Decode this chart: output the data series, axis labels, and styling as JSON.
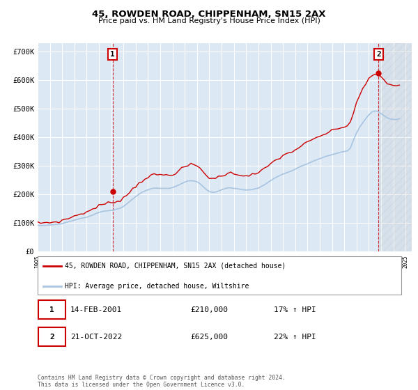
{
  "title": "45, ROWDEN ROAD, CHIPPENHAM, SN15 2AX",
  "subtitle": "Price paid vs. HM Land Registry's House Price Index (HPI)",
  "ylim": [
    0,
    730000
  ],
  "yticks": [
    0,
    100000,
    200000,
    300000,
    400000,
    500000,
    600000,
    700000
  ],
  "ytick_labels": [
    "£0",
    "£100K",
    "£200K",
    "£300K",
    "£400K",
    "£500K",
    "£600K",
    "£700K"
  ],
  "xlim_start": 1995.0,
  "xlim_end": 2025.5,
  "xticks": [
    1995,
    1996,
    1997,
    1998,
    1999,
    2000,
    2001,
    2002,
    2003,
    2004,
    2005,
    2006,
    2007,
    2008,
    2009,
    2010,
    2011,
    2012,
    2013,
    2014,
    2015,
    2016,
    2017,
    2018,
    2019,
    2020,
    2021,
    2022,
    2023,
    2024,
    2025
  ],
  "plot_bg": "#dce9f5",
  "grid_color": "#ffffff",
  "hpi_line_color": "#a8c4e0",
  "price_line_color": "#cc0000",
  "sale1_x": 2001.12,
  "sale1_y": 210000,
  "sale2_x": 2022.8,
  "sale2_y": 625000,
  "legend_label1": "45, ROWDEN ROAD, CHIPPENHAM, SN15 2AX (detached house)",
  "legend_label2": "HPI: Average price, detached house, Wiltshire",
  "table_row1": [
    "1",
    "14-FEB-2001",
    "£210,000",
    "17% ↑ HPI"
  ],
  "table_row2": [
    "2",
    "21-OCT-2022",
    "£625,000",
    "22% ↑ HPI"
  ],
  "footnote": "Contains HM Land Registry data © Crown copyright and database right 2024.\nThis data is licensed under the Open Government Licence v3.0.",
  "hpi_data_x": [
    1995.0,
    1995.25,
    1995.5,
    1995.75,
    1996.0,
    1996.25,
    1996.5,
    1996.75,
    1997.0,
    1997.25,
    1997.5,
    1997.75,
    1998.0,
    1998.25,
    1998.5,
    1998.75,
    1999.0,
    1999.25,
    1999.5,
    1999.75,
    2000.0,
    2000.25,
    2000.5,
    2000.75,
    2001.0,
    2001.25,
    2001.5,
    2001.75,
    2002.0,
    2002.25,
    2002.5,
    2002.75,
    2003.0,
    2003.25,
    2003.5,
    2003.75,
    2004.0,
    2004.25,
    2004.5,
    2004.75,
    2005.0,
    2005.25,
    2005.5,
    2005.75,
    2006.0,
    2006.25,
    2006.5,
    2006.75,
    2007.0,
    2007.25,
    2007.5,
    2007.75,
    2008.0,
    2008.25,
    2008.5,
    2008.75,
    2009.0,
    2009.25,
    2009.5,
    2009.75,
    2010.0,
    2010.25,
    2010.5,
    2010.75,
    2011.0,
    2011.25,
    2011.5,
    2011.75,
    2012.0,
    2012.25,
    2012.5,
    2012.75,
    2013.0,
    2013.25,
    2013.5,
    2013.75,
    2014.0,
    2014.25,
    2014.5,
    2014.75,
    2015.0,
    2015.25,
    2015.5,
    2015.75,
    2016.0,
    2016.25,
    2016.5,
    2016.75,
    2017.0,
    2017.25,
    2017.5,
    2017.75,
    2018.0,
    2018.25,
    2018.5,
    2018.75,
    2019.0,
    2019.25,
    2019.5,
    2019.75,
    2020.0,
    2020.25,
    2020.5,
    2020.75,
    2021.0,
    2021.25,
    2021.5,
    2021.75,
    2022.0,
    2022.25,
    2022.5,
    2022.75,
    2023.0,
    2023.25,
    2023.5,
    2023.75,
    2024.0,
    2024.25,
    2024.5
  ],
  "hpi_data_y": [
    92000,
    91000,
    91500,
    92000,
    93000,
    94000,
    95000,
    96000,
    98000,
    101000,
    104000,
    107000,
    110000,
    113000,
    116000,
    118000,
    120000,
    124000,
    128000,
    133000,
    137000,
    140000,
    142000,
    143000,
    144000,
    146000,
    149000,
    152000,
    158000,
    166000,
    175000,
    184000,
    192000,
    200000,
    207000,
    212000,
    216000,
    220000,
    222000,
    222000,
    221000,
    221000,
    221000,
    221000,
    224000,
    228000,
    233000,
    238000,
    243000,
    247000,
    248000,
    247000,
    244000,
    237000,
    227000,
    217000,
    210000,
    207000,
    208000,
    212000,
    216000,
    220000,
    223000,
    223000,
    221000,
    220000,
    218000,
    216000,
    215000,
    216000,
    217000,
    220000,
    222000,
    228000,
    234000,
    241000,
    248000,
    255000,
    261000,
    266000,
    271000,
    275000,
    279000,
    283000,
    288000,
    294000,
    299000,
    303000,
    307000,
    312000,
    317000,
    321000,
    325000,
    329000,
    333000,
    336000,
    339000,
    342000,
    345000,
    348000,
    350000,
    352000,
    362000,
    390000,
    415000,
    435000,
    450000,
    465000,
    478000,
    488000,
    492000,
    490000,
    483000,
    475000,
    468000,
    464000,
    462000,
    462000,
    465000
  ],
  "price_data_x": [
    1995.0,
    1995.25,
    1995.5,
    1995.75,
    1996.0,
    1996.25,
    1996.5,
    1996.75,
    1997.0,
    1997.25,
    1997.5,
    1997.75,
    1998.0,
    1998.25,
    1998.5,
    1998.75,
    1999.0,
    1999.25,
    1999.5,
    1999.75,
    2000.0,
    2000.25,
    2000.5,
    2000.75,
    2001.0,
    2001.25,
    2001.5,
    2001.75,
    2002.0,
    2002.25,
    2002.5,
    2002.75,
    2003.0,
    2003.25,
    2003.5,
    2003.75,
    2004.0,
    2004.25,
    2004.5,
    2004.75,
    2005.0,
    2005.25,
    2005.5,
    2005.75,
    2006.0,
    2006.25,
    2006.5,
    2006.75,
    2007.0,
    2007.25,
    2007.5,
    2007.75,
    2008.0,
    2008.25,
    2008.5,
    2008.75,
    2009.0,
    2009.25,
    2009.5,
    2009.75,
    2010.0,
    2010.25,
    2010.5,
    2010.75,
    2011.0,
    2011.25,
    2011.5,
    2011.75,
    2012.0,
    2012.25,
    2012.5,
    2012.75,
    2013.0,
    2013.25,
    2013.5,
    2013.75,
    2014.0,
    2014.25,
    2014.5,
    2014.75,
    2015.0,
    2015.25,
    2015.5,
    2015.75,
    2016.0,
    2016.25,
    2016.5,
    2016.75,
    2017.0,
    2017.25,
    2017.5,
    2017.75,
    2018.0,
    2018.25,
    2018.5,
    2018.75,
    2019.0,
    2019.25,
    2019.5,
    2019.75,
    2020.0,
    2020.25,
    2020.5,
    2020.75,
    2021.0,
    2021.25,
    2021.5,
    2021.75,
    2022.0,
    2022.25,
    2022.5,
    2022.75,
    2023.0,
    2023.25,
    2023.5,
    2023.75,
    2024.0,
    2024.25,
    2024.5
  ],
  "price_data_y": [
    100000,
    100000,
    101000,
    101000,
    102000,
    103000,
    104000,
    105000,
    108000,
    112000,
    116000,
    120000,
    124000,
    128000,
    132000,
    135000,
    138000,
    143000,
    149000,
    155000,
    160000,
    164000,
    167000,
    169000,
    171000,
    174000,
    177000,
    181000,
    188000,
    197000,
    208000,
    219000,
    229000,
    239000,
    248000,
    255000,
    261000,
    265000,
    268000,
    269000,
    268000,
    268000,
    268000,
    268000,
    271000,
    276000,
    282000,
    289000,
    296000,
    301000,
    304000,
    303000,
    299000,
    291000,
    279000,
    267000,
    259000,
    255000,
    256000,
    261000,
    265000,
    270000,
    274000,
    274000,
    272000,
    271000,
    269000,
    267000,
    266000,
    267000,
    269000,
    272000,
    275000,
    282000,
    289000,
    298000,
    307000,
    315000,
    323000,
    329000,
    335000,
    340000,
    345000,
    350000,
    356000,
    363000,
    370000,
    376000,
    381000,
    387000,
    393000,
    398000,
    403000,
    408000,
    413000,
    418000,
    422000,
    426000,
    430000,
    434000,
    437000,
    439000,
    453000,
    488000,
    521000,
    547000,
    567000,
    585000,
    602000,
    616000,
    621000,
    619000,
    609000,
    599000,
    590000,
    584000,
    581000,
    581000,
    584000
  ]
}
